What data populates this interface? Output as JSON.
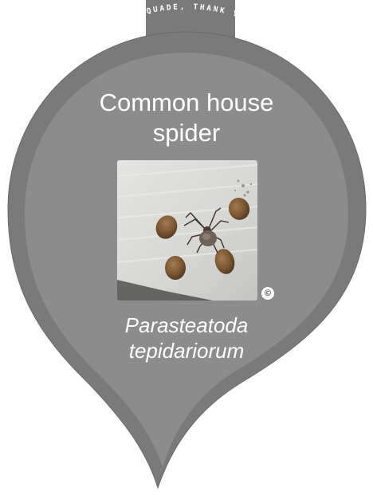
{
  "label": {
    "sponsor_text": "SPONSORED FOR FELIX QUADE, THANK YOU FOR EVERYTHING!",
    "common_name_line1": "Common house",
    "common_name_line2": "spider",
    "scientific_name_line1": "Parasteatoda",
    "scientific_name_line2": "tepidariorum",
    "copyright_symbol": "©"
  },
  "colors": {
    "tag_fill": "#7a7a7a",
    "tag_dark": "#6e6e6e",
    "tag_light": "#8c8c8c",
    "text": "#ffffff"
  },
  "icons": {
    "photo_subject": "spider-with-egg-sacs",
    "copyright": "copyright-icon"
  }
}
